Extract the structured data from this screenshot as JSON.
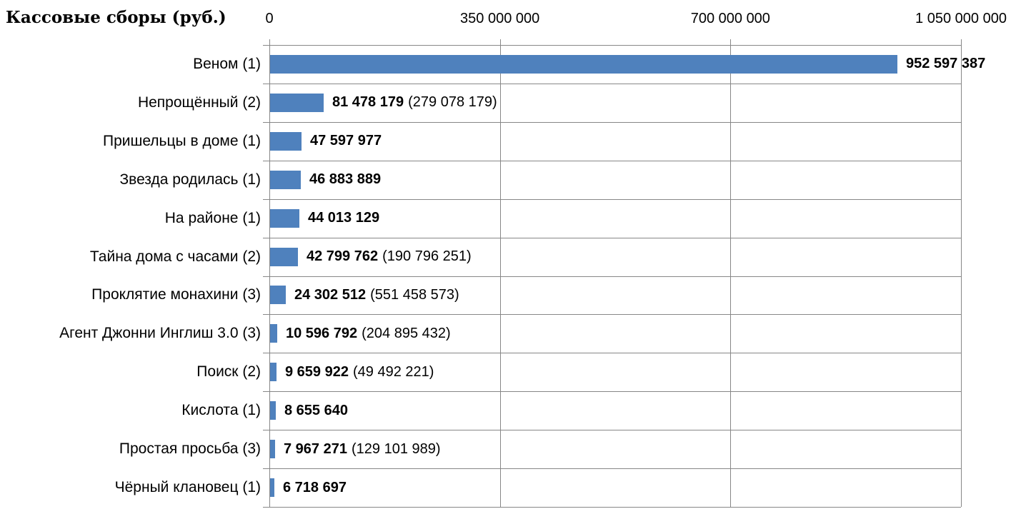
{
  "chart_data": {
    "type": "bar",
    "orientation": "horizontal",
    "title": "Кассовые сборы (руб.)",
    "xlabel": "",
    "ylabel": "",
    "xlim": [
      0,
      1050000000
    ],
    "x_ticks": [
      "0",
      "350 000 000",
      "700 000 000",
      "1 050 000 000"
    ],
    "x_tick_values": [
      0,
      350000000,
      700000000,
      1050000000
    ],
    "grid": true,
    "legend": "none",
    "bar_color": "#4F81BD",
    "gridline_color": "#878787",
    "text_color": "#000000",
    "categories": [
      "Веном (1)",
      "Непрощённый (2)",
      "Пришельцы в доме (1)",
      "Звезда родилась (1)",
      "На районе (1)",
      "Тайна дома с часами (2)",
      "Проклятие монахини (3)",
      "Агент Джонни Инглиш 3.0 (3)",
      "Поиск (2)",
      "Кислота (1)",
      "Простая просьба (3)",
      "Чёрный клановец (1)"
    ],
    "values": [
      952597387,
      81478179,
      47597977,
      46883889,
      44013129,
      42799762,
      24302512,
      10596792,
      9659922,
      8655640,
      7967271,
      6718697
    ],
    "value_labels": [
      {
        "main": "952 597 387",
        "secondary": ""
      },
      {
        "main": "81 478 179",
        "secondary": "(279 078 179)"
      },
      {
        "main": "47 597 977",
        "secondary": ""
      },
      {
        "main": "46 883 889",
        "secondary": ""
      },
      {
        "main": "44 013 129",
        "secondary": ""
      },
      {
        "main": "42 799 762",
        "secondary": "(190 796 251)"
      },
      {
        "main": "24 302 512",
        "secondary": "(551 458 573)"
      },
      {
        "main": "10 596 792",
        "secondary": "(204 895 432)"
      },
      {
        "main": "9 659 922",
        "secondary": "(49 492 221)"
      },
      {
        "main": "8 655 640",
        "secondary": ""
      },
      {
        "main": "7 967 271",
        "secondary": "(129 101 989)"
      },
      {
        "main": "6 718 697",
        "secondary": ""
      }
    ]
  }
}
